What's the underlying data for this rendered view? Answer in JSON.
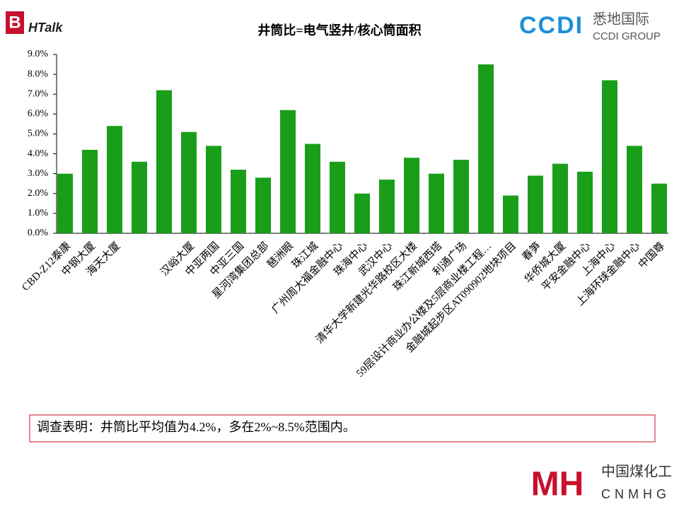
{
  "header": {
    "logo_left": "HTalk",
    "logo_left_mark": "B",
    "logo_right_cn": "悉地国际",
    "logo_right_en": "CCDI GROUP",
    "logo_right_mark": "CCDI"
  },
  "chart_data": {
    "type": "bar",
    "title": "井筒比=电气竖井/核心筒面积",
    "categories": [
      "CBD-Z12泰康",
      "中钢大厦",
      "海天大厦",
      null,
      null,
      "汉峪大厦",
      "中亚两国",
      "中亚三国",
      "星河湾集团总部",
      "琶洲眼",
      "珠江城",
      "广州周大福金融中心",
      "珠海中心",
      "武汉中心",
      "清华大学新建光华路校区大楼",
      "珠江新城西塔",
      "利通广场",
      "59层设计商业办公楼及5层商业楼工程…",
      "金融城起步区AT090902地块项目",
      "春笋",
      "华侨城大厦",
      "平安金融中心",
      "上海中心",
      "上海环球金融中心",
      "中国尊"
    ],
    "values": [
      3.0,
      4.2,
      5.4,
      3.6,
      7.2,
      5.1,
      4.4,
      3.2,
      2.8,
      6.2,
      4.5,
      3.6,
      2.0,
      2.7,
      3.8,
      3.0,
      3.7,
      8.5,
      1.9,
      2.9,
      3.5,
      3.1,
      7.7,
      4.4,
      2.5
    ],
    "color": "#1a9e1a",
    "ylim": [
      0,
      9
    ],
    "yticks": [
      {
        "value": 0,
        "label": "0.0%"
      },
      {
        "value": 1,
        "label": "1.0%"
      },
      {
        "value": 2,
        "label": "2.0%"
      },
      {
        "value": 3,
        "label": "3.0%"
      },
      {
        "value": 4,
        "label": "4.0%"
      },
      {
        "value": 5,
        "label": "5.0%"
      },
      {
        "value": 6,
        "label": "6.0%"
      },
      {
        "value": 7,
        "label": "7.0%"
      },
      {
        "value": 8,
        "label": "8.0%"
      },
      {
        "value": 9,
        "label": "9.0%"
      }
    ],
    "grid": false
  },
  "note": "调查表明：井筒比平均值为4.2%，多在2%~8.5%范围内。",
  "footer": {
    "logo_cn": "中国煤化工",
    "logo_en": "CNMHG",
    "logo_mark": "MH"
  }
}
